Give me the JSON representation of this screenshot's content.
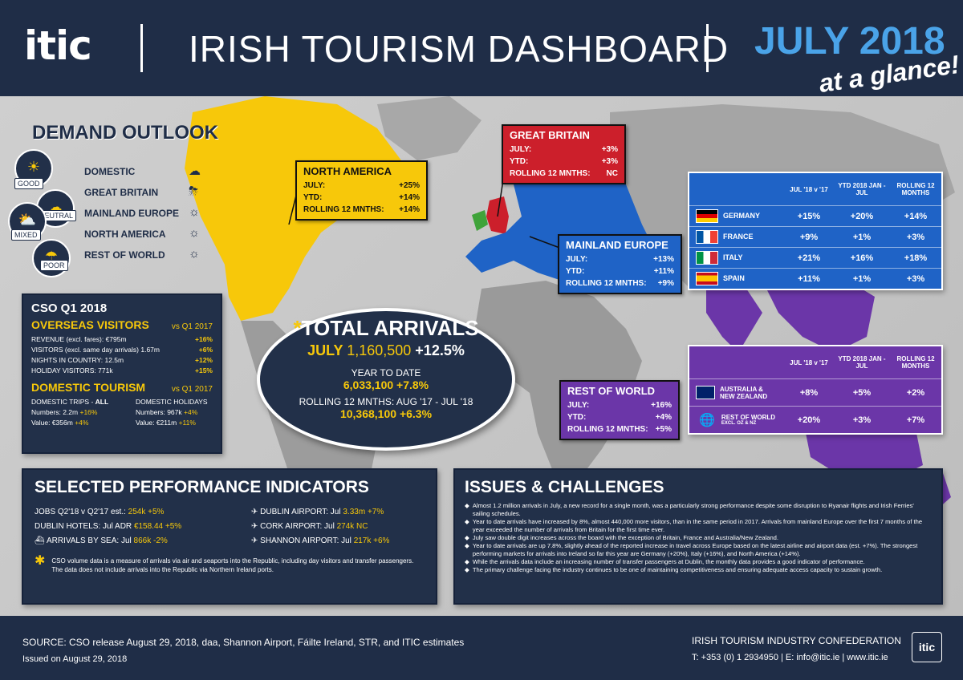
{
  "header": {
    "logo": "itic",
    "title": "IRISH TOURISM DASHBOARD",
    "date": "JULY 2018",
    "subtitle": "at a glance!"
  },
  "demand": {
    "title": "DEMAND OUTLOOK",
    "ratings": [
      "GOOD",
      "NEUTRAL",
      "MIXED",
      "POOR"
    ],
    "items": [
      {
        "label": "DOMESTIC",
        "icon": "cloud-icon"
      },
      {
        "label": "GREAT BRITAIN",
        "icon": "storm-icon"
      },
      {
        "label": "MAINLAND EUROPE",
        "icon": "sun-icon"
      },
      {
        "label": "NORTH AMERICA",
        "icon": "sun-icon"
      },
      {
        "label": "REST OF WORLD",
        "icon": "sun-icon"
      }
    ]
  },
  "north_america": {
    "title": "NORTH AMERICA",
    "rows": [
      {
        "label": "JULY:",
        "value": "+25%"
      },
      {
        "label": "YTD:",
        "value": "+14%"
      },
      {
        "label": "ROLLING 12 MNTHS:",
        "value": "+14%"
      }
    ]
  },
  "great_britain": {
    "title": "GREAT BRITAIN",
    "rows": [
      {
        "label": "JULY:",
        "value": "+3%"
      },
      {
        "label": "YTD:",
        "value": "+3%"
      },
      {
        "label": "ROLLING 12 MNTHS:",
        "value": "NC"
      }
    ]
  },
  "mainland_europe": {
    "title": "MAINLAND EUROPE",
    "rows": [
      {
        "label": "JULY:",
        "value": "+13%"
      },
      {
        "label": "YTD:",
        "value": "+11%"
      },
      {
        "label": "ROLLING 12 MNTHS:",
        "value": "+9%"
      }
    ]
  },
  "rest_of_world": {
    "title": "REST OF WORLD",
    "rows": [
      {
        "label": "JULY:",
        "value": "+16%"
      },
      {
        "label": "YTD:",
        "value": "+4%"
      },
      {
        "label": "ROLLING 12 MNTHS:",
        "value": "+5%"
      }
    ]
  },
  "europe_table": {
    "headers": [
      "JUL '18 v '17",
      "YTD 2018 JAN - JUL",
      "ROLLING 12 MONTHS"
    ],
    "rows": [
      {
        "country": "GERMANY",
        "jul": "+15%",
        "ytd": "+20%",
        "rolling": "+14%"
      },
      {
        "country": "FRANCE",
        "jul": "+9%",
        "ytd": "+1%",
        "rolling": "+3%"
      },
      {
        "country": "ITALY",
        "jul": "+21%",
        "ytd": "+16%",
        "rolling": "+18%"
      },
      {
        "country": "SPAIN",
        "jul": "+11%",
        "ytd": "+1%",
        "rolling": "+3%"
      }
    ]
  },
  "row_table": {
    "headers": [
      "JUL '18 v '17",
      "YTD 2018 JAN - JUL",
      "ROLLING 12 MONTHS"
    ],
    "rows": [
      {
        "country": "AUSTRALIA & NEW ZEALAND",
        "jul": "+8%",
        "ytd": "+5%",
        "rolling": "+2%"
      },
      {
        "country": "REST OF WORLD",
        "note": "EXCL. OZ & NZ",
        "jul": "+20%",
        "ytd": "+3%",
        "rolling": "+7%"
      }
    ]
  },
  "cso": {
    "title": "CSO Q1 2018",
    "overseas_title": "OVERSEAS VISITORS",
    "overseas_vs": "vs Q1 2017",
    "overseas_rows": [
      {
        "label": "REVENUE (excl. fares): €795m",
        "value": "+16%"
      },
      {
        "label": "VISITORS (excl. same day arrivals) 1.67m",
        "value": "+6%"
      },
      {
        "label": "NIGHTS IN COUNTRY: 12.5m",
        "value": "+12%"
      },
      {
        "label": "HOLIDAY VISITORS: 771k",
        "value": "+15%"
      }
    ],
    "domestic_title": "DOMESTIC TOURISM",
    "domestic_vs": "vs Q1 2017",
    "trips_title_a": "DOMESTIC TRIPS - ",
    "trips_title_b": "ALL",
    "trips_numbers": "Numbers: 2.2m",
    "trips_numbers_change": "+16%",
    "trips_value": "Value: €356m",
    "trips_value_change": "+4%",
    "holidays_title": "DOMESTIC HOLIDAYS",
    "holidays_numbers": "Numbers: 967k",
    "holidays_numbers_change": "+4%",
    "holidays_value": "Value: €211m",
    "holidays_value_change": "+11%"
  },
  "total": {
    "title_star": "*",
    "title": "TOTAL ARRIVALS",
    "july_label": "JULY",
    "july_value": "1,160,500",
    "july_change": "+12.5%",
    "ytd_label": "YEAR TO DATE",
    "ytd_value": "6,033,100",
    "ytd_change": "+7.8%",
    "rolling_label": "ROLLING 12 MNTHS: AUG '17 - JUL '18",
    "rolling_value": "10,368,100",
    "rolling_change": "+6.3%"
  },
  "indicators": {
    "title": "SELECTED PERFORMANCE INDICATORS",
    "left": [
      {
        "label": "JOBS Q2'18 v Q2'17 est.:",
        "value": "254k",
        "change": "+5%"
      },
      {
        "label": "DUBLIN HOTELS: Jul ADR",
        "value": "€158.44",
        "change": "+5%"
      },
      {
        "label": "ARRIVALS BY SEA: Jul",
        "value": "866k",
        "change": "-2%"
      }
    ],
    "right": [
      {
        "label": "DUBLIN AIRPORT: Jul",
        "value": "3.33m",
        "change": "+7%"
      },
      {
        "label": "CORK AIRPORT: Jul",
        "value": "274k",
        "change": "NC"
      },
      {
        "label": "SHANNON AIRPORT: Jul",
        "value": "217k",
        "change": "+6%"
      }
    ],
    "note": "CSO volume data is a measure of arrivals via air and seaports into the Republic, including day visitors and transfer passengers. The data does not include arrivals into the Republic via Northern Ireland ports."
  },
  "issues": {
    "title": "ISSUES & CHALLENGES",
    "bullets": [
      "Almost 1.2 million arrivals in July, a new record for a single month, was a particularly strong performance despite some disruption to Ryanair flights and Irish Ferries' sailing schedules.",
      "Year to date arrivals have increased by 8%, almost 440,000 more visitors, than in the same period in 2017. Arrivals from mainland Europe over the first 7 months of the year exceeded the number of arrivals from Britain for the first time ever.",
      "July saw double digit increases across the board with the exception of Britain, France and Australia/New Zealand.",
      "Year to date arrivals are up 7.8%, slightly ahead of the reported increase in travel across Europe based on the latest airline and airport data (est. +7%). The strongest performing markets for arrivals into Ireland so far this year are Germany (+20%), Italy (+16%), and North America (+14%).",
      "While the arrivals data include an increasing number of transfer passengers at Dublin, the monthly data provides a good indicator of performance.",
      "The primary challenge facing the industry continues to be one of maintaining competitiveness and ensuring adequate access capacity to sustain growth."
    ]
  },
  "footer": {
    "source": "SOURCE: CSO release August 29, 2018, daa, Shannon Airport, Fáilte Ireland, STR, and ITIC estimates",
    "issued": "Issued on August 29, 2018",
    "org": "IRISH TOURISM INDUSTRY CONFEDERATION",
    "contact": "T: +353 (0) 1 2934950 | E: info@itic.ie | www.itic.ie",
    "logo": "itic"
  },
  "colors": {
    "navy": "#1f2d47",
    "yellow": "#f7c80a",
    "red": "#cc1f2b",
    "blue": "#1f63c6",
    "purple": "#6b36a8",
    "green": "#3fa33a"
  }
}
